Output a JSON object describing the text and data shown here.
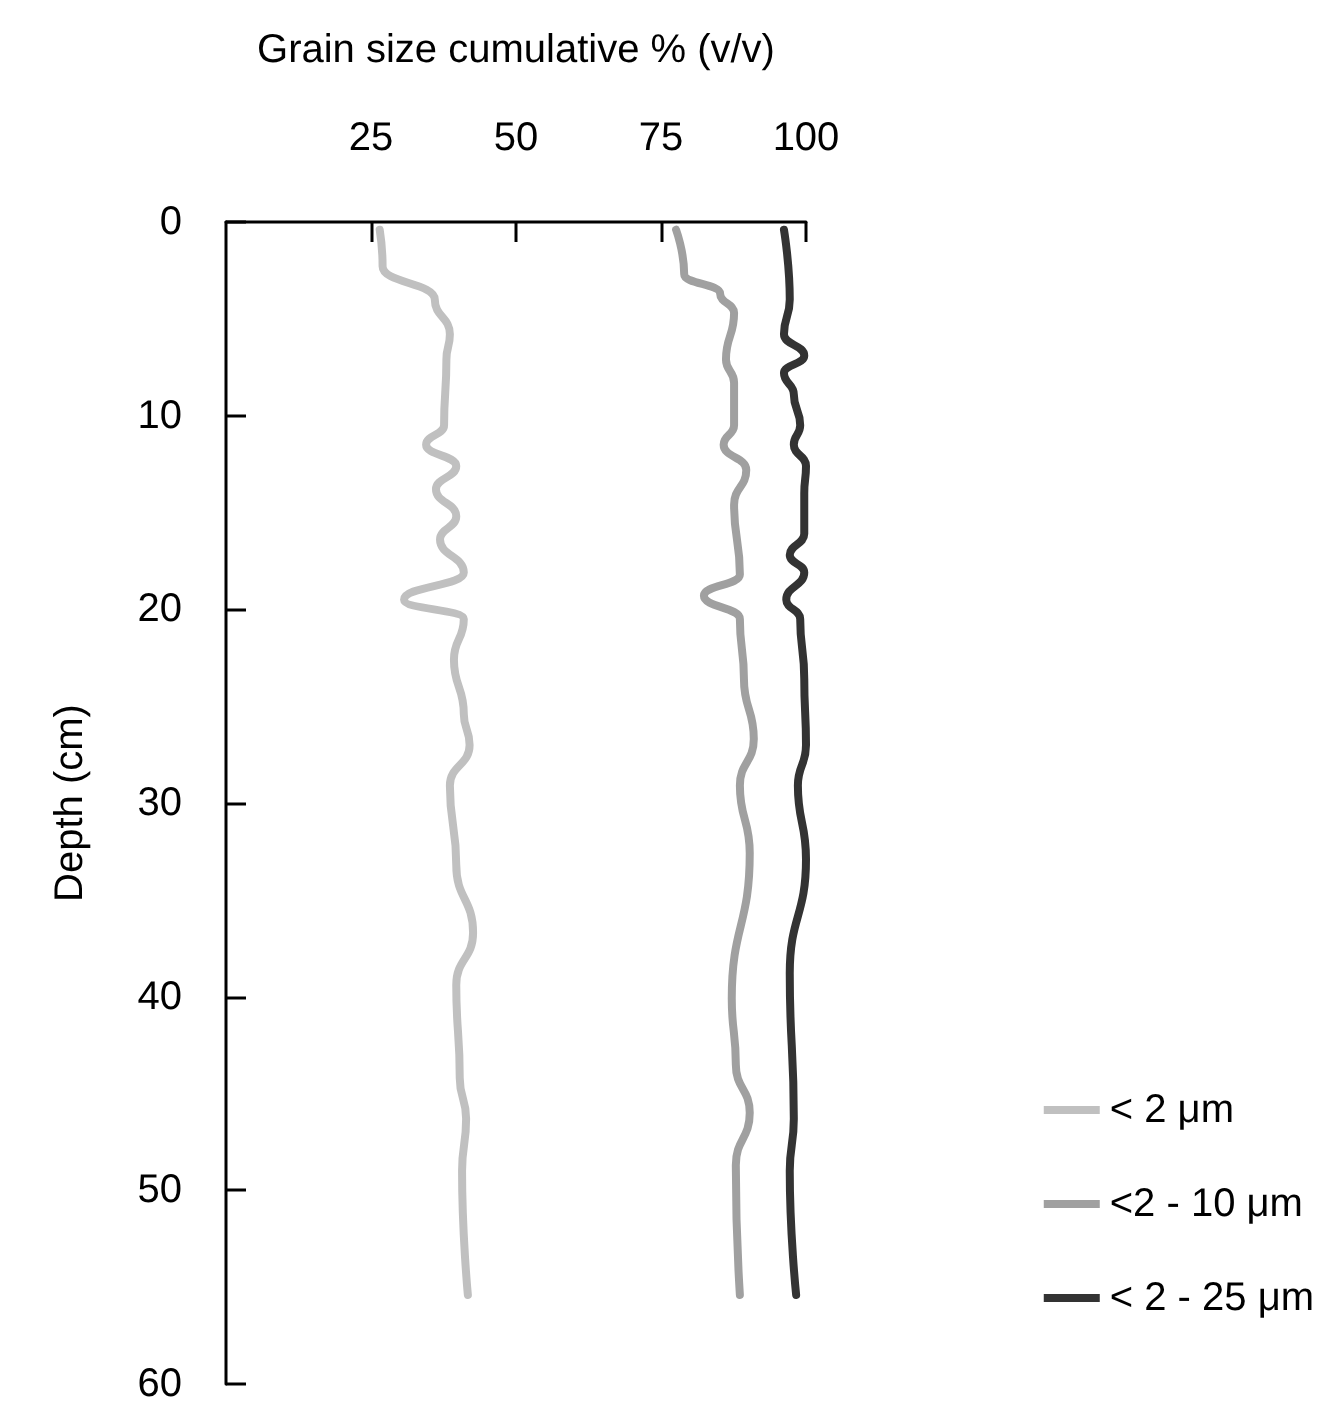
{
  "chart_data": {
    "type": "line",
    "xlabel": "Grain size cumulative % (v/v)",
    "ylabel": "Depth (cm)",
    "xlim": [
      0,
      100
    ],
    "xticks": [
      25,
      50,
      75,
      100
    ],
    "ylim": [
      60,
      0
    ],
    "yticks": [
      0,
      10,
      20,
      30,
      40,
      50,
      60
    ],
    "legend": "right",
    "marker": "none",
    "series": [
      {
        "name": "< 2 μm",
        "color": "#c0c0c0",
        "x": [
          26.5,
          27,
          36,
          38.6,
          38,
          37.6,
          34.5,
          39.7,
          36.2,
          39.7,
          36.9,
          41,
          30.7,
          41,
          39.3,
          41,
          42,
          38.6,
          39.7,
          42.6,
          39.7,
          40.3,
          41.4,
          40.7,
          41.7
        ],
        "values": [
          0.4,
          2.3,
          4,
          5.8,
          7.1,
          10.5,
          11.5,
          12.6,
          13.8,
          15.2,
          16.4,
          18.1,
          19.5,
          20.5,
          22.6,
          25.4,
          27,
          29.1,
          33.2,
          36.7,
          39.4,
          44.2,
          46.3,
          49,
          55.4
        ]
      },
      {
        "name": "<2 - 10 μm",
        "color": "#a0a0a0",
        "x": [
          77.6,
          79,
          85.2,
          87.6,
          86.2,
          87.6,
          87.6,
          85.8,
          89.7,
          87.6,
          88.6,
          82.4,
          88.6,
          89.3,
          91,
          88.6,
          90.3,
          87.2,
          87.9,
          90.3,
          87.9,
          88.6
        ],
        "values": [
          0.4,
          2.7,
          3.7,
          4.7,
          7.1,
          8.3,
          10.5,
          11.5,
          12.8,
          14.6,
          18.2,
          19.3,
          20.5,
          23.6,
          26.7,
          29.1,
          32.6,
          40.1,
          43.5,
          46,
          48.7,
          55.4
        ]
      },
      {
        "name": "< 2 - 25 μm",
        "color": "#333333",
        "x": [
          96.2,
          97.2,
          96.2,
          99.7,
          96.2,
          97.9,
          99,
          97.9,
          100,
          99.7,
          99.7,
          97.2,
          99.7,
          96.6,
          99,
          99.7,
          100,
          98.6,
          100,
          97.2,
          97.9,
          97.2,
          98.3
        ],
        "values": [
          0.4,
          4,
          5.8,
          6.9,
          7.8,
          8.9,
          10.5,
          11.5,
          12.6,
          14,
          16.1,
          17.2,
          18.1,
          19.5,
          20.5,
          23.6,
          27,
          29.1,
          32.9,
          38.8,
          46.3,
          49,
          55.4
        ]
      }
    ]
  }
}
